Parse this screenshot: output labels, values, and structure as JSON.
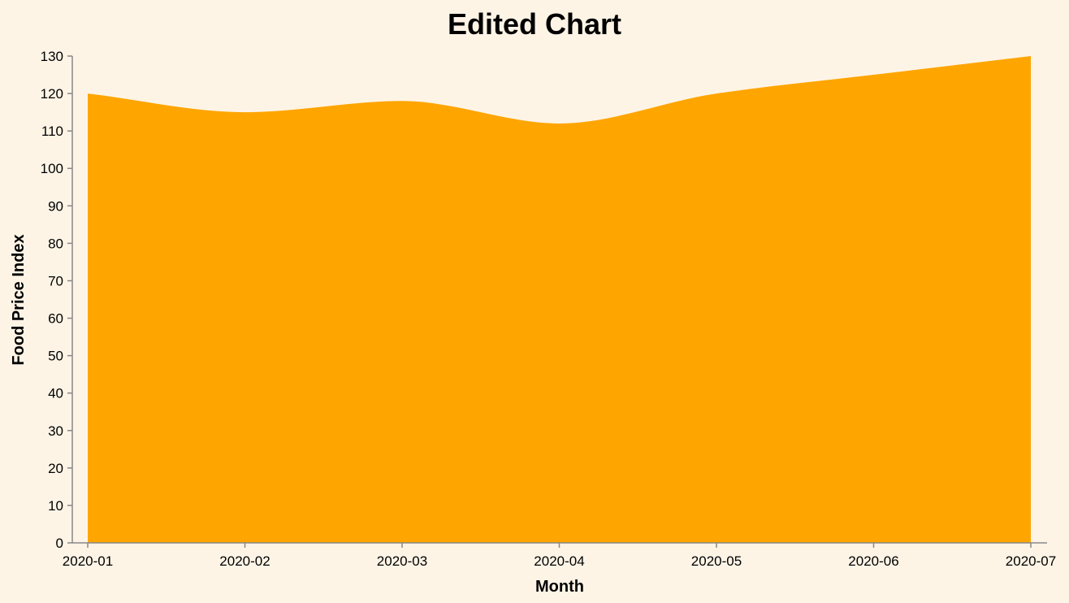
{
  "chart_data": {
    "type": "area",
    "title": "Edited Chart",
    "xlabel": "Month",
    "ylabel": "Food Price Index",
    "x": [
      "2020-01",
      "2020-02",
      "2020-03",
      "2020-04",
      "2020-05",
      "2020-06",
      "2020-07"
    ],
    "series": [
      {
        "name": "Food Price Index",
        "values": [
          120,
          115,
          118,
          112,
          120,
          125,
          130
        ]
      }
    ],
    "ylim": [
      0,
      130
    ],
    "yticks": [
      0,
      10,
      20,
      30,
      40,
      50,
      60,
      70,
      80,
      90,
      100,
      110,
      120,
      130
    ],
    "grid": false,
    "colors": {
      "area": "#ffa500",
      "axis": "#888888",
      "background": "#fdf4e6"
    }
  }
}
